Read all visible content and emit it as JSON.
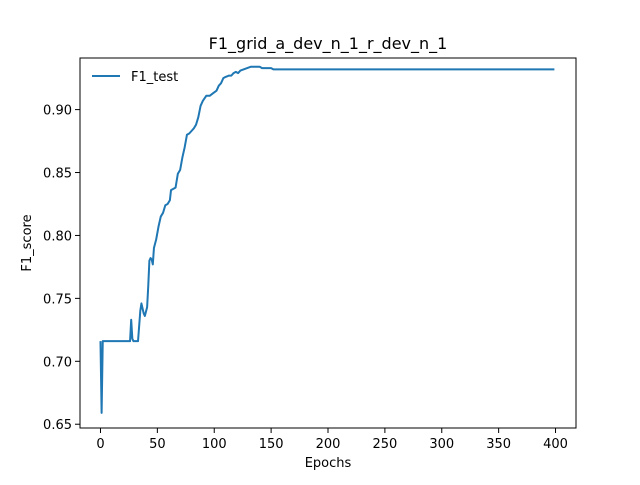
{
  "chart_data": {
    "type": "line",
    "title": "F1_grid_a_dev_n_1_r_dev_n_1",
    "xlabel": "Epochs",
    "ylabel": "F1_score",
    "xlim": [
      -18,
      418
    ],
    "ylim": [
      0.647,
      0.941
    ],
    "xticks": [
      0,
      50,
      100,
      150,
      200,
      250,
      300,
      350,
      400
    ],
    "yticks": [
      0.65,
      0.7,
      0.75,
      0.8,
      0.85,
      0.9
    ],
    "ytick_labels": [
      "0.65",
      "0.70",
      "0.75",
      "0.80",
      "0.85",
      "0.90"
    ],
    "grid": false,
    "legend_position": "top-left",
    "series": [
      {
        "name": "F1_test",
        "color": "#1f77b4",
        "points": [
          [
            0,
            0.716
          ],
          [
            1,
            0.659
          ],
          [
            2,
            0.716
          ],
          [
            26,
            0.716
          ],
          [
            27,
            0.733
          ],
          [
            28,
            0.718
          ],
          [
            29,
            0.716
          ],
          [
            33,
            0.716
          ],
          [
            35,
            0.74
          ],
          [
            36,
            0.746
          ],
          [
            38,
            0.738
          ],
          [
            39,
            0.736
          ],
          [
            41,
            0.743
          ],
          [
            42,
            0.76
          ],
          [
            43,
            0.78
          ],
          [
            44,
            0.782
          ],
          [
            45,
            0.781
          ],
          [
            46,
            0.777
          ],
          [
            47,
            0.79
          ],
          [
            49,
            0.797
          ],
          [
            51,
            0.807
          ],
          [
            53,
            0.815
          ],
          [
            55,
            0.818
          ],
          [
            57,
            0.824
          ],
          [
            59,
            0.825
          ],
          [
            61,
            0.828
          ],
          [
            62,
            0.836
          ],
          [
            64,
            0.837
          ],
          [
            66,
            0.838
          ],
          [
            68,
            0.849
          ],
          [
            70,
            0.852
          ],
          [
            72,
            0.862
          ],
          [
            74,
            0.87
          ],
          [
            76,
            0.88
          ],
          [
            78,
            0.881
          ],
          [
            80,
            0.883
          ],
          [
            82,
            0.885
          ],
          [
            84,
            0.888
          ],
          [
            86,
            0.894
          ],
          [
            88,
            0.903
          ],
          [
            90,
            0.907
          ],
          [
            93,
            0.911
          ],
          [
            96,
            0.911
          ],
          [
            99,
            0.913
          ],
          [
            102,
            0.915
          ],
          [
            104,
            0.919
          ],
          [
            106,
            0.921
          ],
          [
            108,
            0.925
          ],
          [
            110,
            0.926
          ],
          [
            113,
            0.927
          ],
          [
            115,
            0.927
          ],
          [
            117,
            0.929
          ],
          [
            119,
            0.93
          ],
          [
            121,
            0.929
          ],
          [
            123,
            0.931
          ],
          [
            126,
            0.932
          ],
          [
            129,
            0.933
          ],
          [
            132,
            0.934
          ],
          [
            135,
            0.934
          ],
          [
            138,
            0.934
          ],
          [
            140,
            0.934
          ],
          [
            142,
            0.933
          ],
          [
            145,
            0.933
          ],
          [
            148,
            0.933
          ],
          [
            150,
            0.933
          ],
          [
            152,
            0.932
          ],
          [
            160,
            0.932
          ],
          [
            200,
            0.932
          ],
          [
            250,
            0.932
          ],
          [
            300,
            0.932
          ],
          [
            350,
            0.932
          ],
          [
            399,
            0.932
          ]
        ]
      }
    ]
  }
}
